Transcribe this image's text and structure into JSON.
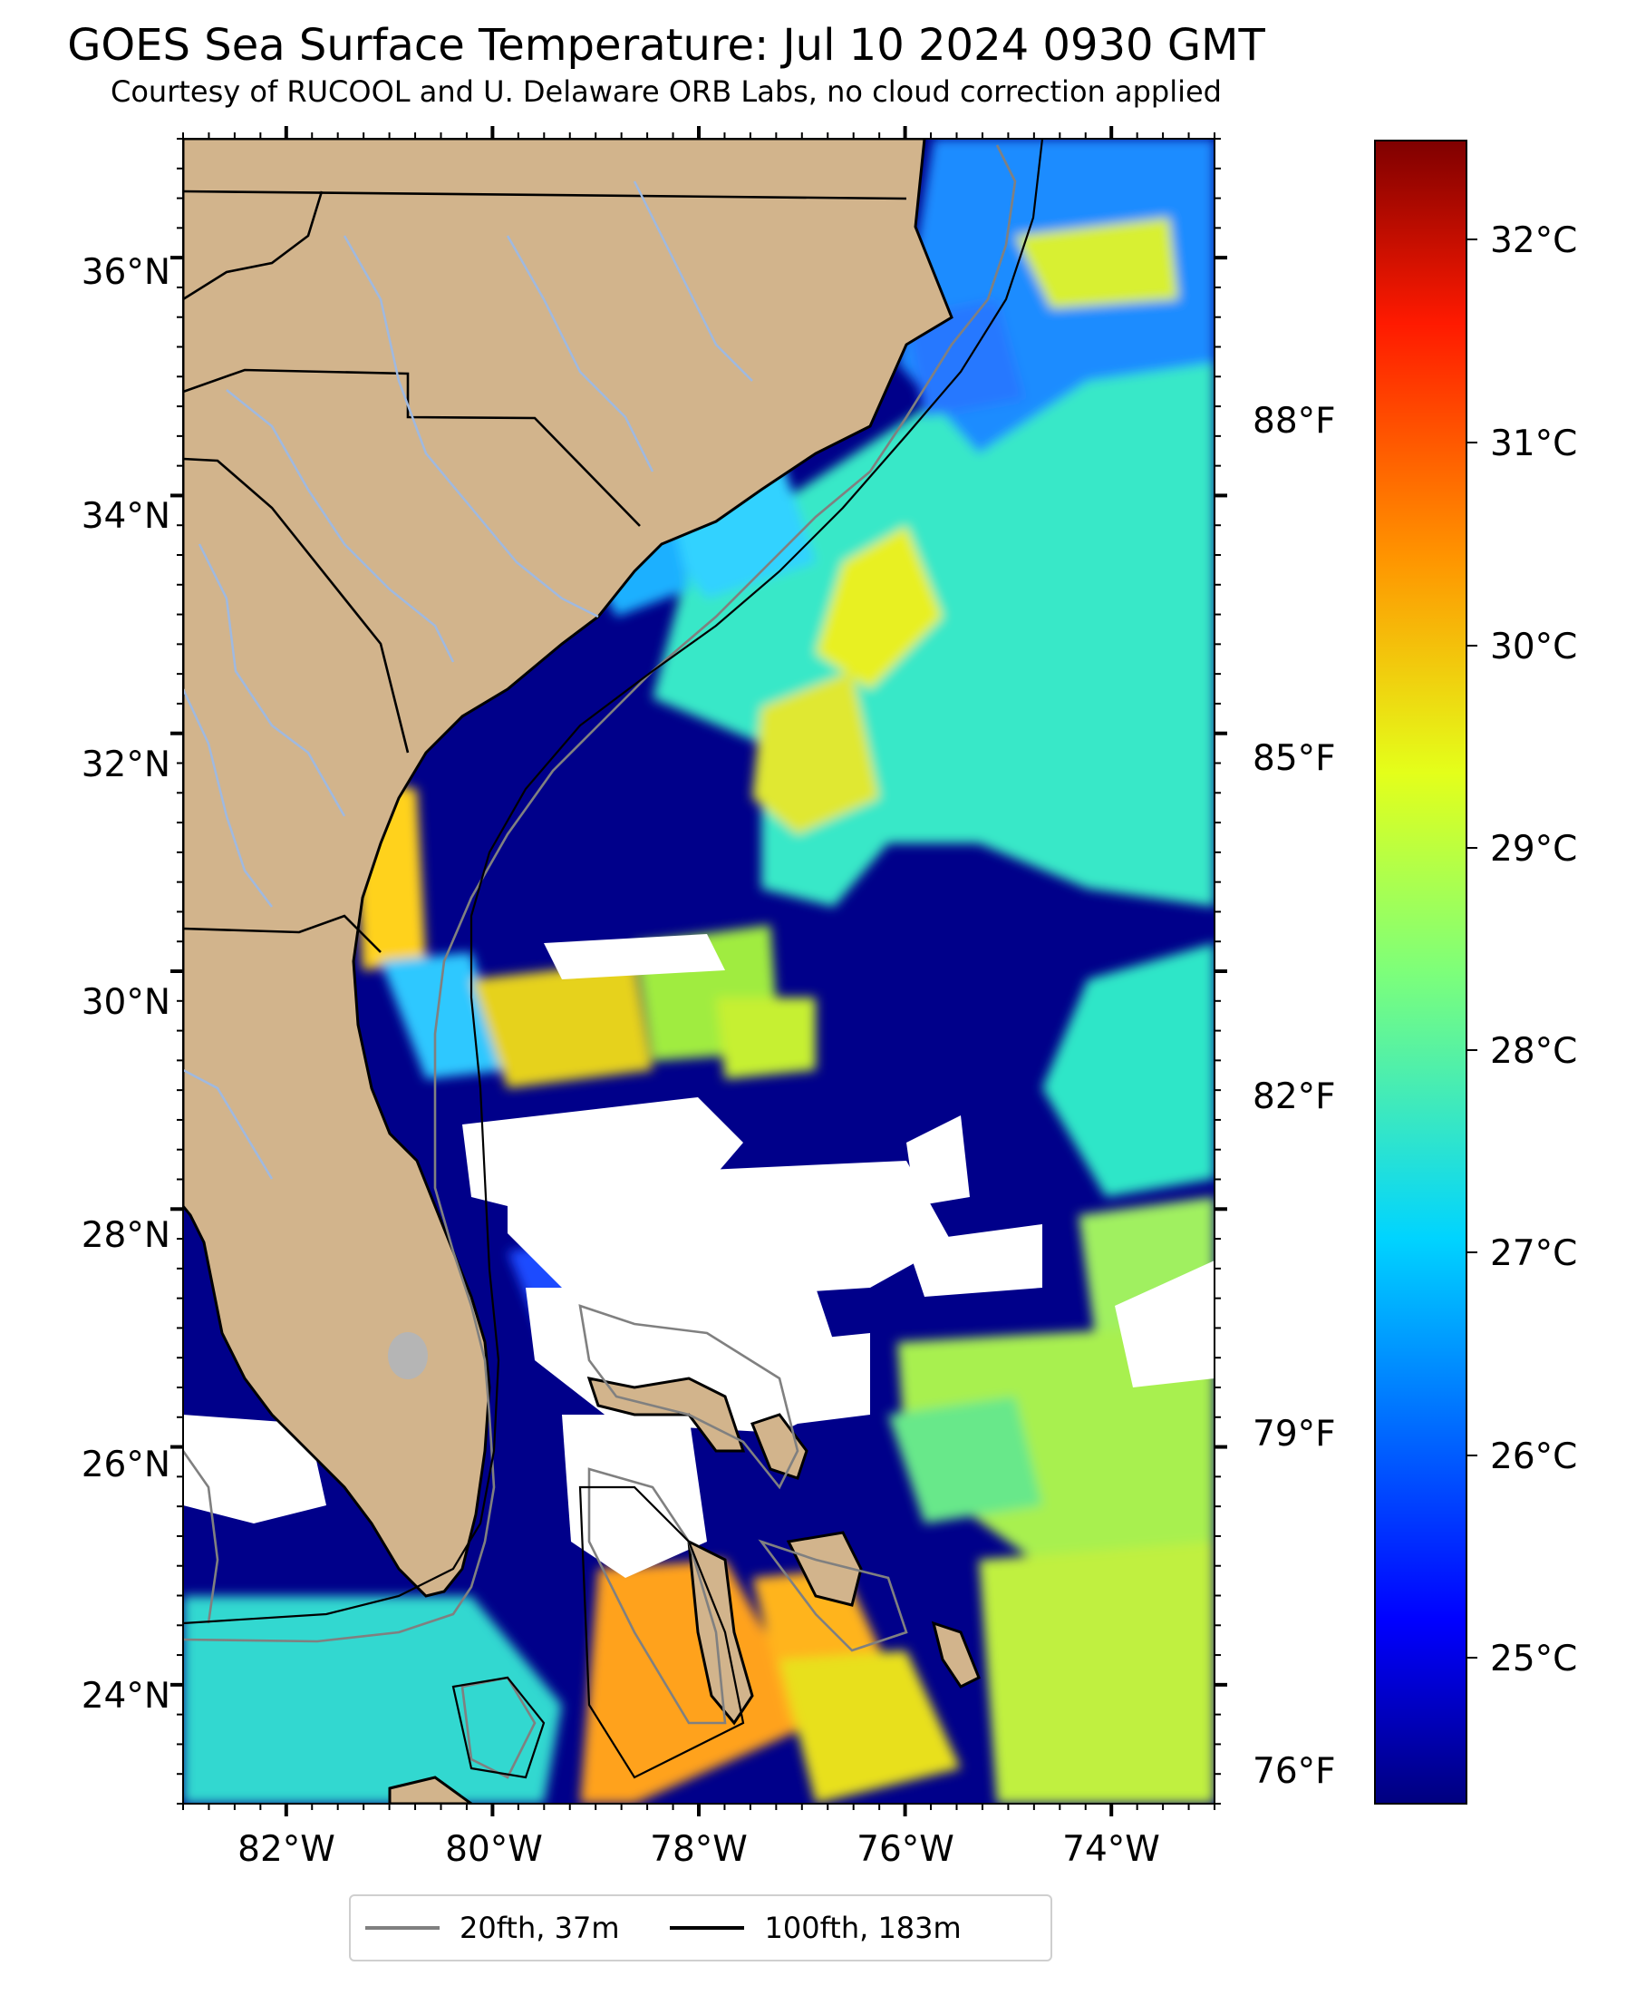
{
  "title": "GOES Sea Surface Temperature: Jul 10 2024 0930 GMT",
  "subtitle": "Courtesy of RUCOOL and U. Delaware ORB Labs, no cloud correction applied",
  "map": {
    "lon_range": [
      -83,
      -73
    ],
    "lat_range": [
      23,
      37
    ],
    "x_ticks": [
      "82°W",
      "80°W",
      "78°W",
      "76°W",
      "74°W"
    ],
    "y_ticks": [
      "24°N",
      "26°N",
      "28°N",
      "30°N",
      "32°N",
      "34°N",
      "36°N"
    ],
    "land_color": "#D2B48C",
    "cloud_color": "#ffffff",
    "state_border_color": "#000000",
    "river_color": "#9fb9e0"
  },
  "colorbar": {
    "colormap": "jet",
    "celsius_labels": [
      "32°C",
      "31°C",
      "30°C",
      "29°C",
      "28°C",
      "27°C",
      "26°C",
      "25°C"
    ],
    "fahrenheit_labels": [
      "88°F",
      "85°F",
      "82°F",
      "79°F",
      "76°F"
    ],
    "range_c": [
      24.3,
      32.4
    ]
  },
  "legend": {
    "items": [
      {
        "label": "20fth, 37m",
        "color": "#808080"
      },
      {
        "label": "100fth, 183m",
        "color": "#000000"
      }
    ]
  }
}
